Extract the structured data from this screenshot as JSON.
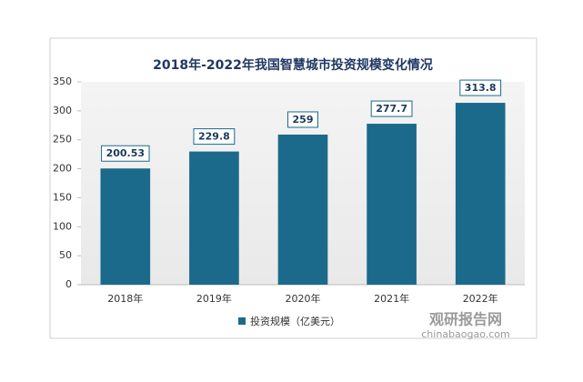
{
  "chart_data": {
    "type": "bar",
    "title": "2018年-2022年我国智慧城市投资规模变化情况",
    "categories": [
      "2018年",
      "2019年",
      "2020年",
      "2021年",
      "2022年"
    ],
    "series": [
      {
        "name": "投资规模（亿美元）",
        "color": "#1b6a8c",
        "values": [
          200.53,
          229.8,
          259,
          277.7,
          313.8
        ]
      }
    ],
    "ylim": [
      0,
      350
    ],
    "yticks": [
      0,
      50,
      100,
      150,
      200,
      250,
      300,
      350
    ],
    "legend": "bottom",
    "watermark": {
      "name": "观研报告网",
      "url": "chinabaogao.com"
    }
  }
}
